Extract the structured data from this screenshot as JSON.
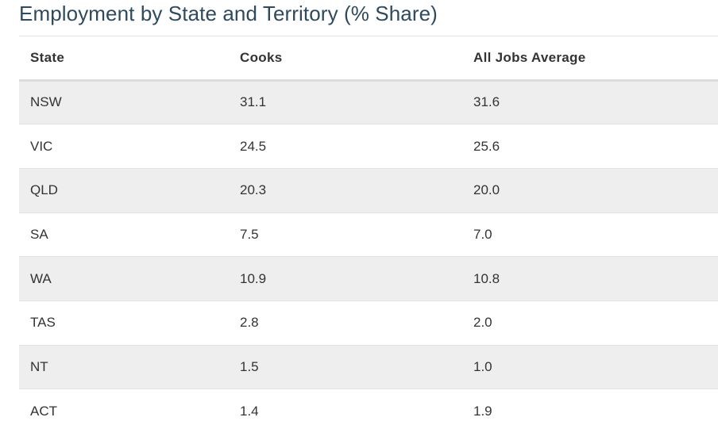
{
  "chart_data": {
    "type": "table",
    "title": "Employment by State and Territory (% Share)",
    "columns": [
      "State",
      "Cooks",
      "All Jobs Average"
    ],
    "rows": [
      [
        "NSW",
        "31.1",
        "31.6"
      ],
      [
        "VIC",
        "24.5",
        "25.6"
      ],
      [
        "QLD",
        "20.3",
        "20.0"
      ],
      [
        "SA",
        "7.5",
        "7.0"
      ],
      [
        "WA",
        "10.9",
        "10.8"
      ],
      [
        "TAS",
        "2.8",
        "2.0"
      ],
      [
        "NT",
        "1.5",
        "1.0"
      ],
      [
        "ACT",
        "1.4",
        "1.9"
      ]
    ],
    "colors": {
      "title": "#2e4a5e",
      "header_text": "#333333",
      "row_stripe": "#eeeeee",
      "row_plain": "#ffffff"
    }
  }
}
